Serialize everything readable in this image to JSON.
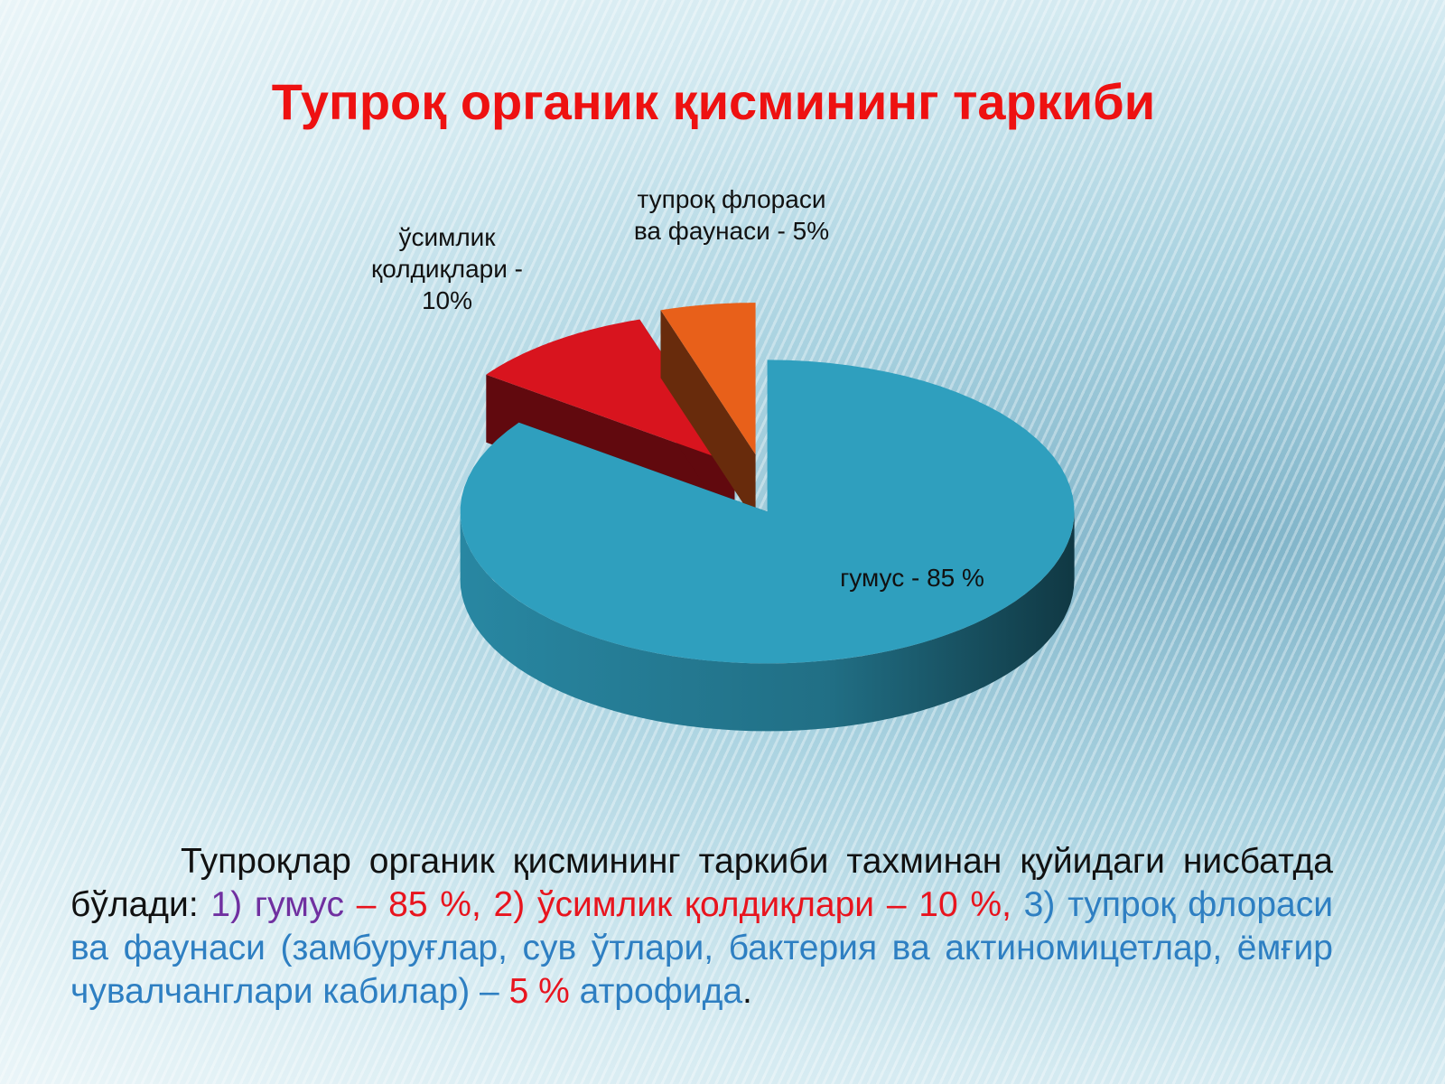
{
  "title": "Тупроқ органик қисмининг таркиби",
  "chart_data": {
    "type": "pie3d",
    "values": [
      85,
      10,
      5
    ],
    "value_labels": [
      "гумус - 85 %",
      "ўсимлик қолдиқлари - 10%",
      "тупроқ флораси ва фаунаси - 5%"
    ],
    "colors": [
      "#2f9fbe",
      "#d8141e",
      "#e8601a"
    ]
  },
  "paragraph": [
    {
      "text": "Тупроқлар органик қисмининг таркиби тахминан қуйидаги нисбатда бўлади: ",
      "color": "#111111"
    },
    {
      "text": "1) гумус ",
      "color": "#7030a0"
    },
    {
      "text": "– 85 %, 2) ўсимлик қолдиқлари – 10 %, ",
      "color": "#e8141e"
    },
    {
      "text": "3) тупроқ флораси ва фаунаси (замбуруғлар, сув ўтлари, бактерия ва актиномицетлар, ёмғир чувалчанглари кабилар) – ",
      "color": "#2e7fc2"
    },
    {
      "text": "5 %",
      "color": "#e8141e"
    },
    {
      "text": " атрофида",
      "color": "#2e7fc2"
    },
    {
      "text": ".",
      "color": "#111111"
    }
  ]
}
